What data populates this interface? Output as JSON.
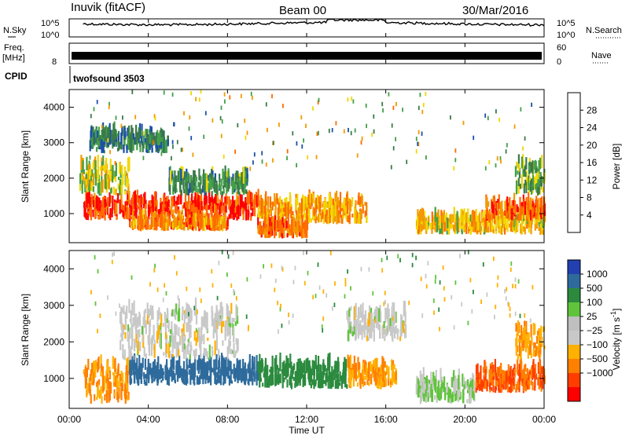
{
  "header": {
    "station": "Inuvik (fitACF)",
    "beam": "Beam 00",
    "date": "30/Mar/2016"
  },
  "top_panels": {
    "nsky_label": "N.Sky",
    "nsky_ticks": [
      "10^5",
      "10^0"
    ],
    "nsearch_label": "N.Search",
    "nsearch_ticks": [
      "10^5",
      "10^0"
    ],
    "freq_label": "Freq.",
    "freq_unit": "[MHz]",
    "freq_ticks": [
      "8"
    ],
    "nave_label": "Nave",
    "nave_ticks": [
      "60",
      "0"
    ],
    "cpid_label": "CPID",
    "cpid_value": "twofsound 3503"
  },
  "colors": {
    "power": [
      "#0000ff",
      "#1b4fa8",
      "#3a7a4a",
      "#43a047",
      "#f1d700",
      "#f29a00",
      "#ff6a00",
      "#ff0000"
    ],
    "velocity": [
      "#ff0000",
      "#ff3d00",
      "#ff7f00",
      "#ffb000",
      "#c8c8c8",
      "#bfbfbf",
      "#5fc43a",
      "#2b8a3e",
      "#2e6b9c",
      "#2340b0"
    ]
  },
  "chart_data": [
    {
      "type": "heatmap",
      "name": "power",
      "xlabel": "",
      "ylabel": "Slant Range [km]",
      "ylim": [
        180,
        4500
      ],
      "y_ticks": [
        "1000",
        "2000",
        "3000",
        "4000"
      ],
      "colorbar": {
        "label": "Power [dB]",
        "ticks": [
          "4",
          "8",
          "12",
          "16",
          "20",
          "24",
          "28"
        ],
        "range": [
          0,
          32
        ]
      },
      "bands": [
        {
          "x0": 0.7,
          "x1": 9.5,
          "y0": 800,
          "y1": 1300,
          "value": 28
        },
        {
          "x0": 3.0,
          "x1": 8.0,
          "y0": 500,
          "y1": 700,
          "value": 24
        },
        {
          "x0": 0.5,
          "x1": 3.0,
          "y0": 1500,
          "y1": 2300,
          "value": 18
        },
        {
          "x0": 9.5,
          "x1": 15.0,
          "y0": 700,
          "y1": 1300,
          "value": 22
        },
        {
          "x0": 9.5,
          "x1": 12.0,
          "y0": 300,
          "y1": 600,
          "value": 26
        },
        {
          "x0": 5.0,
          "x1": 9.0,
          "y0": 1500,
          "y1": 2000,
          "value": 12
        },
        {
          "x0": 17.5,
          "x1": 24.0,
          "y0": 400,
          "y1": 800,
          "value": 20
        },
        {
          "x0": 21.0,
          "x1": 24.0,
          "y0": 800,
          "y1": 1200,
          "value": 26
        },
        {
          "x0": 1.0,
          "x1": 5.0,
          "y0": 2700,
          "y1": 3200,
          "value": 10
        },
        {
          "x0": 22.5,
          "x1": 24.0,
          "y0": 1500,
          "y1": 2300,
          "value": 14
        }
      ]
    },
    {
      "type": "heatmap",
      "name": "velocity",
      "xlabel": "Time UT",
      "ylabel": "Slant Range [km]",
      "ylim": [
        180,
        4500
      ],
      "x_ticks": [
        "00:00",
        "04:00",
        "08:00",
        "12:00",
        "16:00",
        "20:00",
        "00:00"
      ],
      "y_ticks": [
        "1000",
        "2000",
        "3000",
        "4000"
      ],
      "colorbar": {
        "label": "Velocity [m s^-1]",
        "ticks": [
          "1000",
          "500",
          "100",
          "25",
          "-25",
          "-100",
          "-500",
          "-1000"
        ]
      },
      "bands": [
        {
          "x0": 0.7,
          "x1": 3.0,
          "y0": 300,
          "y1": 1300,
          "value": -100
        },
        {
          "x0": 3.0,
          "x1": 9.5,
          "y0": 800,
          "y1": 1300,
          "value": 500
        },
        {
          "x0": 2.5,
          "x1": 8.5,
          "y0": 1500,
          "y1": 2800,
          "value": 0
        },
        {
          "x0": 9.5,
          "x1": 14.0,
          "y0": 700,
          "y1": 1300,
          "value": 100
        },
        {
          "x0": 14.0,
          "x1": 16.5,
          "y0": 700,
          "y1": 1300,
          "value": -100
        },
        {
          "x0": 14.0,
          "x1": 17.0,
          "y0": 2000,
          "y1": 2700,
          "value": 0
        },
        {
          "x0": 17.5,
          "x1": 20.5,
          "y0": 300,
          "y1": 900,
          "value": 25
        },
        {
          "x0": 20.5,
          "x1": 24.0,
          "y0": 600,
          "y1": 1200,
          "value": -500
        },
        {
          "x0": 22.5,
          "x1": 24.0,
          "y0": 1500,
          "y1": 2300,
          "value": -100
        }
      ]
    }
  ]
}
